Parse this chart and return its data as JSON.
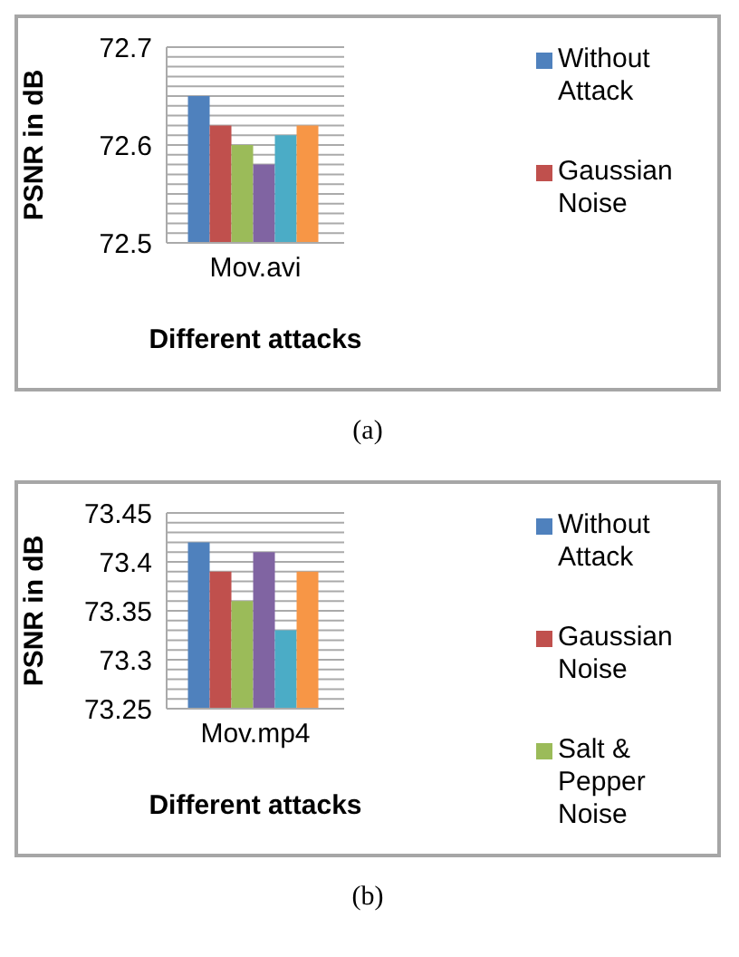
{
  "chart_data": [
    {
      "type": "bar",
      "categories": [
        "Mov.avi"
      ],
      "xlabel": "Different attacks",
      "ylabel": "PSNR in dB",
      "ylim": [
        72.5,
        72.7
      ],
      "yticks": [
        72.5,
        {
          "value": 72.51,
          "label": null
        },
        {
          "value": 72.52,
          "label": null
        },
        {
          "value": 72.53,
          "label": null
        },
        {
          "value": 72.54,
          "label": null
        },
        {
          "value": 72.55,
          "label": null
        },
        {
          "value": 72.56,
          "label": null
        },
        {
          "value": 72.57,
          "label": null
        },
        {
          "value": 72.58,
          "label": null
        },
        {
          "value": 72.59,
          "label": null
        },
        72.6,
        {
          "value": 72.61,
          "label": null
        },
        {
          "value": 72.62,
          "label": null
        },
        {
          "value": 72.63,
          "label": null
        },
        {
          "value": 72.64,
          "label": null
        },
        {
          "value": 72.65,
          "label": null
        },
        {
          "value": 72.66,
          "label": null
        },
        {
          "value": 72.67,
          "label": null
        },
        {
          "value": 72.68,
          "label": null
        },
        {
          "value": 72.69,
          "label": null
        },
        72.7
      ],
      "grid": "y",
      "legend": "right",
      "annotations": [
        "(a)"
      ],
      "series": [
        {
          "name": "Without Attack",
          "color": "#4f81bd",
          "values": [
            72.65
          ]
        },
        {
          "name": "Gaussian Noise",
          "color": "#c0504d",
          "values": [
            72.62
          ]
        },
        {
          "color": "#9bbb59",
          "values": [
            72.6
          ]
        },
        {
          "color": "#8064a2",
          "values": [
            72.58
          ]
        },
        {
          "color": "#4bacc6",
          "values": [
            72.61
          ]
        },
        {
          "color": "#f79646",
          "values": [
            72.62
          ]
        }
      ]
    },
    {
      "type": "bar",
      "categories": [
        "Mov.mp4"
      ],
      "xlabel": "Different attacks",
      "ylabel": "PSNR in dB",
      "ylim": [
        73.25,
        73.45
      ],
      "yticks": [
        73.25,
        {
          "value": 73.26,
          "label": null
        },
        {
          "value": 73.27,
          "label": null
        },
        {
          "value": 73.28,
          "label": null
        },
        {
          "value": 73.29,
          "label": null
        },
        73.3,
        {
          "value": 73.31,
          "label": null
        },
        {
          "value": 73.32,
          "label": null
        },
        {
          "value": 73.33,
          "label": null
        },
        {
          "value": 73.34,
          "label": null
        },
        73.35,
        {
          "value": 73.36,
          "label": null
        },
        {
          "value": 73.37,
          "label": null
        },
        {
          "value": 73.38,
          "label": null
        },
        {
          "value": 73.39,
          "label": null
        },
        73.4,
        {
          "value": 73.41,
          "label": null
        },
        {
          "value": 73.42,
          "label": null
        },
        {
          "value": 73.43,
          "label": null
        },
        {
          "value": 73.44,
          "label": null
        },
        73.45
      ],
      "grid": "y",
      "legend": "right",
      "annotations": [
        "(b)"
      ],
      "series": [
        {
          "name": "Without Attack",
          "color": "#4f81bd",
          "values": [
            73.42
          ]
        },
        {
          "name": "Gaussian Noise",
          "color": "#c0504d",
          "values": [
            73.39
          ]
        },
        {
          "name": "Salt & Pepper Noise",
          "color": "#9bbb59",
          "values": [
            73.36
          ]
        },
        {
          "color": "#8064a2",
          "values": [
            73.41
          ]
        },
        {
          "color": "#4bacc6",
          "values": [
            73.33
          ]
        },
        {
          "color": "#f79646",
          "values": [
            73.39
          ]
        }
      ]
    }
  ]
}
